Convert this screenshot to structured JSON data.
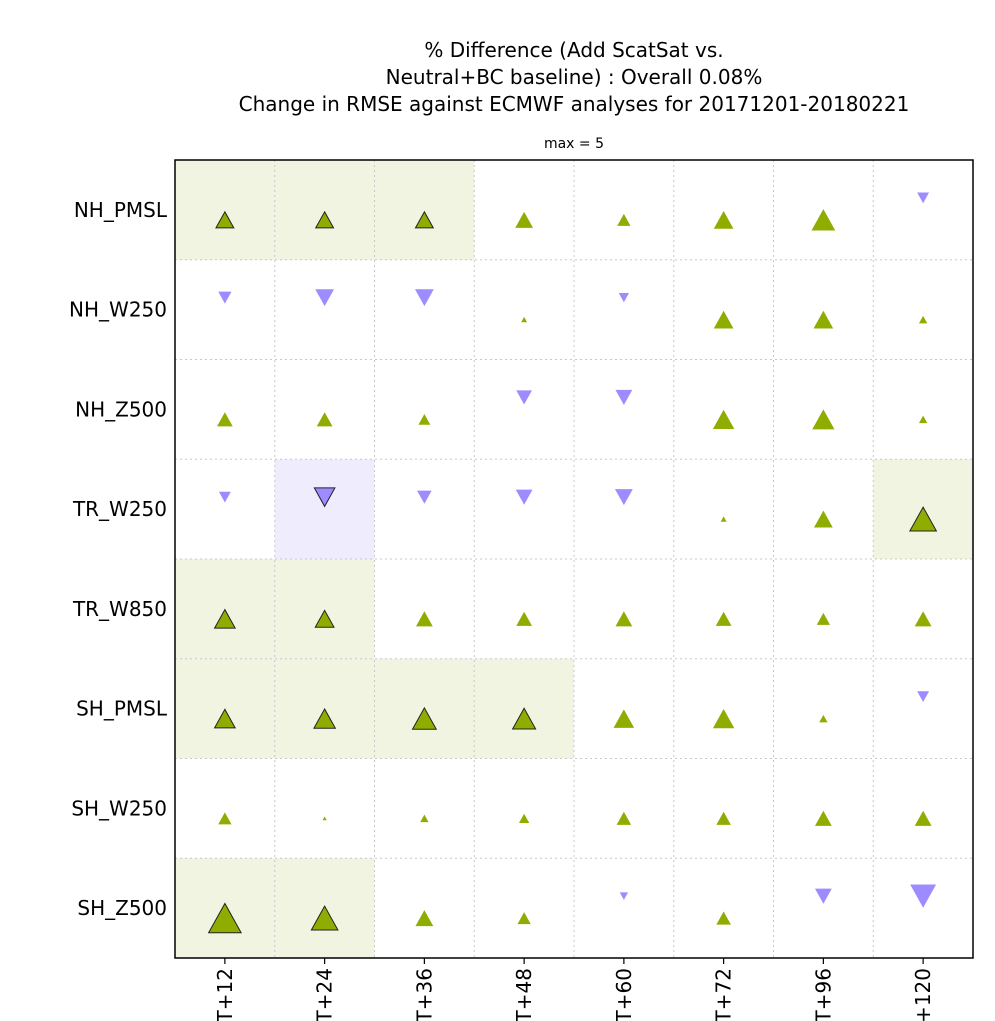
{
  "chart_data": {
    "type": "scorecard",
    "title_lines": [
      "% Difference (Add ScatSat vs.",
      "Neutral+BC baseline) : Overall 0.08%",
      "Change in RMSE against ECMWF analyses for 20171201-20180221"
    ],
    "subtitle": "max = 5",
    "rows": [
      "NH_PMSL",
      "NH_W250",
      "NH_Z500",
      "TR_W250",
      "TR_W850",
      "SH_PMSL",
      "SH_W250",
      "SH_Z500"
    ],
    "columns": [
      "T+12",
      "T+24",
      "T+36",
      "T+48",
      "T+60",
      "T+72",
      "T+96",
      "+120"
    ],
    "max": 5,
    "values": [
      [
        0.9,
        0.9,
        0.9,
        0.9,
        0.5,
        1.1,
        1.6,
        -0.4
      ],
      [
        -0.5,
        -1.0,
        -1.0,
        0.1,
        -0.3,
        1.1,
        1.1,
        0.2
      ],
      [
        0.7,
        0.7,
        0.4,
        -0.7,
        -0.8,
        1.3,
        1.4,
        0.2
      ],
      [
        -0.4,
        -1.2,
        -0.6,
        -0.8,
        -0.9,
        0.1,
        1.0,
        2.0
      ],
      [
        1.2,
        1.0,
        0.8,
        0.7,
        0.8,
        0.7,
        0.5,
        0.8
      ],
      [
        1.2,
        1.3,
        1.6,
        1.5,
        1.2,
        1.3,
        0.2,
        -0.4
      ],
      [
        0.5,
        0.05,
        0.2,
        0.3,
        0.6,
        0.6,
        0.8,
        0.8
      ],
      [
        3.0,
        2.0,
        0.9,
        0.5,
        -0.2,
        0.6,
        -0.8,
        -1.9
      ]
    ],
    "significant": [
      [
        true,
        true,
        true,
        false,
        false,
        false,
        false,
        false
      ],
      [
        false,
        false,
        false,
        false,
        false,
        false,
        false,
        false
      ],
      [
        false,
        false,
        false,
        false,
        false,
        false,
        false,
        false
      ],
      [
        false,
        true,
        false,
        false,
        false,
        false,
        false,
        true
      ],
      [
        true,
        true,
        false,
        false,
        false,
        false,
        false,
        false
      ],
      [
        true,
        true,
        true,
        true,
        false,
        false,
        false,
        false
      ],
      [
        false,
        false,
        false,
        false,
        false,
        false,
        false,
        false
      ],
      [
        true,
        true,
        false,
        false,
        false,
        false,
        false,
        false
      ]
    ],
    "grid": true,
    "colors": {
      "improvement": "#8fad00",
      "degradation": "#9c8cff",
      "improvement_bg": "#f0f4e1",
      "degradation_bg": "#efedfd"
    }
  }
}
